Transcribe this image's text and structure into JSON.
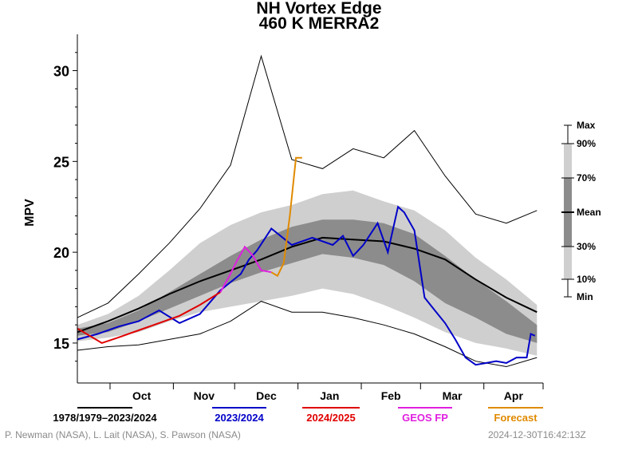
{
  "chart_data": {
    "type": "line",
    "title": "NH Vortex Edge",
    "subtitle": "460 K   MERRA2",
    "xlabel": "",
    "ylabel": "MPV",
    "x_start": "Sep 15",
    "x_end": "May 1",
    "ylim": [
      12.8,
      32.0
    ],
    "y_ticks": [
      15,
      20,
      25,
      30
    ],
    "month_labels": [
      "Oct",
      "Nov",
      "Dec",
      "Jan",
      "Feb",
      "Mar",
      "Apr"
    ],
    "days": [
      0,
      15,
      30,
      45,
      60,
      75,
      90,
      105,
      120,
      135,
      150,
      165,
      180,
      195,
      210,
      225
    ],
    "climatology": {
      "period": "1978/1979–2023/2024",
      "max": [
        16.4,
        17.2,
        18.8,
        20.5,
        22.4,
        24.8,
        30.8,
        25.1,
        24.6,
        25.7,
        25.2,
        26.7,
        24.2,
        22.1,
        21.6,
        22.3
      ],
      "p90": [
        16.0,
        16.6,
        17.6,
        19.0,
        20.5,
        21.5,
        22.2,
        22.6,
        23.2,
        23.4,
        22.8,
        22.3,
        21.2,
        19.7,
        18.5,
        17.1
      ],
      "p70": [
        15.8,
        16.1,
        16.8,
        17.8,
        18.8,
        19.8,
        20.7,
        21.4,
        21.8,
        21.8,
        21.6,
        21.0,
        19.8,
        18.5,
        17.3,
        16.0
      ],
      "mean": [
        15.6,
        16.2,
        16.9,
        17.7,
        18.4,
        19.0,
        19.6,
        20.3,
        20.8,
        20.7,
        20.6,
        20.2,
        19.6,
        18.5,
        17.5,
        16.7
      ],
      "p30": [
        15.4,
        15.6,
        16.2,
        16.9,
        17.6,
        18.3,
        18.9,
        19.4,
        19.9,
        19.7,
        19.3,
        18.4,
        17.2,
        16.4,
        15.5,
        15.0
      ],
      "p10": [
        15.1,
        15.3,
        15.6,
        16.2,
        16.7,
        17.0,
        17.3,
        17.6,
        18.0,
        17.7,
        17.1,
        16.4,
        15.6,
        15.0,
        14.7,
        14.3
      ],
      "min": [
        14.6,
        14.8,
        14.9,
        15.2,
        15.5,
        16.2,
        17.3,
        16.7,
        16.7,
        16.4,
        16.0,
        15.5,
        14.8,
        14.0,
        13.7,
        14.2
      ]
    },
    "series": [
      {
        "name": "2023/2024",
        "color": "#0000c8",
        "days": [
          0,
          10,
          20,
          30,
          40,
          50,
          60,
          70,
          80,
          84,
          88,
          95,
          105,
          115,
          125,
          130,
          135,
          140,
          147,
          152,
          157,
          160,
          165,
          170,
          175,
          180,
          185,
          190,
          195,
          200,
          205,
          210,
          215,
          220,
          222,
          224
        ],
        "values": [
          15.2,
          15.5,
          15.9,
          16.2,
          16.8,
          16.1,
          16.6,
          17.9,
          18.8,
          19.6,
          20.1,
          21.3,
          20.4,
          20.8,
          20.4,
          20.9,
          19.8,
          20.4,
          21.6,
          20.0,
          22.5,
          22.2,
          21.2,
          17.5,
          16.8,
          16.1,
          15.2,
          14.2,
          13.8,
          13.9,
          14.0,
          13.9,
          14.2,
          14.2,
          15.5,
          15.4
        ]
      },
      {
        "name": "2024/2025",
        "color": "#e00000",
        "days": [
          0,
          6,
          12,
          20,
          30,
          40,
          50,
          60,
          70
        ],
        "values": [
          15.8,
          15.4,
          15.0,
          15.3,
          15.7,
          16.1,
          16.5,
          17.1,
          17.8
        ]
      },
      {
        "name": "GEOS FP",
        "color": "#e020e0",
        "days": [
          70,
          74,
          78,
          82,
          86,
          90,
          95
        ],
        "values": [
          17.8,
          18.6,
          19.5,
          20.3,
          19.8,
          19.0,
          18.9
        ]
      },
      {
        "name": "Forecast",
        "color": "#e08a00",
        "days": [
          95,
          98,
          101,
          104,
          107,
          110
        ],
        "values": [
          18.9,
          18.7,
          19.4,
          22.0,
          25.2,
          25.2
        ]
      }
    ],
    "right_legend": [
      "Max",
      "90%",
      "70%",
      "Mean",
      "30%",
      "10%",
      "Min"
    ],
    "bottom_legend": [
      {
        "label": "1978/1979–2023/2024",
        "color": "#000000"
      },
      {
        "label": "2023/2024",
        "color": "#0000c8"
      },
      {
        "label": "2024/2025",
        "color": "#e00000"
      },
      {
        "label": "GEOS FP",
        "color": "#e020e0"
      },
      {
        "label": "Forecast",
        "color": "#e08a00"
      }
    ]
  },
  "colors": {
    "band_outer": "#cfcfcf",
    "band_inner": "#8c8c8c",
    "mean_line": "#000000",
    "minmax_line": "#000000"
  },
  "credits": {
    "authors": "P. Newman (NASA), L. Lait (NASA), S. Pawson (NASA)",
    "timestamp": "2024-12-30T16:42:13Z"
  }
}
